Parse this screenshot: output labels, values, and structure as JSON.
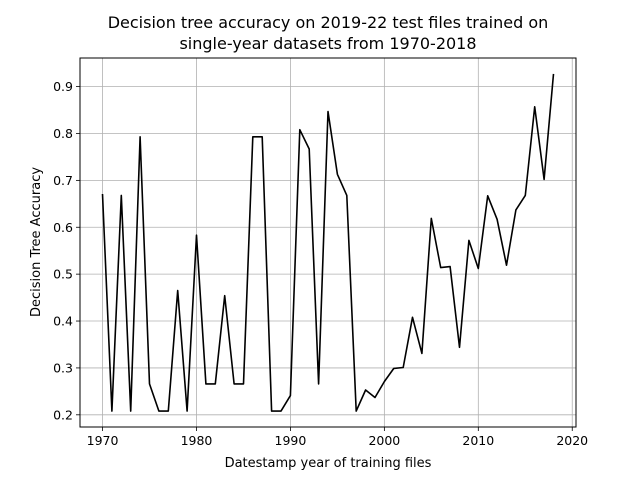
{
  "chart_data": {
    "type": "line",
    "title": [
      "Decision tree accuracy on 2019-22 test files trained on",
      "single-year datasets from 1970-2018"
    ],
    "xlabel": "Datestamp year of training files",
    "ylabel": "Decision Tree Accuracy",
    "xlim": [
      1967.6,
      2020.4
    ],
    "ylim": [
      0.174,
      0.961
    ],
    "x_ticks": [
      1970,
      1980,
      1990,
      2000,
      2010,
      2020
    ],
    "y_ticks": [
      0.2,
      0.3,
      0.4,
      0.5,
      0.6,
      0.7,
      0.8,
      0.9
    ],
    "y_tick_labels": [
      "0.2",
      "0.3",
      "0.4",
      "0.5",
      "0.6",
      "0.7",
      "0.8",
      "0.9"
    ],
    "grid": true,
    "line_color": "#000000",
    "series": [
      {
        "x": [
          1970,
          1971,
          1972,
          1973,
          1974,
          1975,
          1976,
          1977,
          1978,
          1979,
          1980,
          1981,
          1982,
          1983,
          1984,
          1985,
          1986,
          1987,
          1988,
          1989,
          1990,
          1991,
          1992,
          1993,
          1994,
          1995,
          1996,
          1997,
          1998,
          1999,
          2000,
          2001,
          2002,
          2003,
          2004,
          2005,
          2006,
          2007,
          2008,
          2009,
          2010,
          2011,
          2012,
          2013,
          2014,
          2015,
          2016,
          2017,
          2018
        ],
        "values": [
          0.671,
          0.208,
          0.668,
          0.208,
          0.793,
          0.266,
          0.208,
          0.208,
          0.465,
          0.208,
          0.583,
          0.266,
          0.266,
          0.454,
          0.266,
          0.266,
          0.793,
          0.793,
          0.208,
          0.208,
          0.241,
          0.808,
          0.767,
          0.266,
          0.847,
          0.713,
          0.668,
          0.208,
          0.253,
          0.237,
          0.271,
          0.299,
          0.301,
          0.408,
          0.331,
          0.619,
          0.514,
          0.516,
          0.344,
          0.572,
          0.512,
          0.667,
          0.617,
          0.519,
          0.637,
          0.668,
          0.857,
          0.702,
          0.927
        ]
      }
    ]
  }
}
